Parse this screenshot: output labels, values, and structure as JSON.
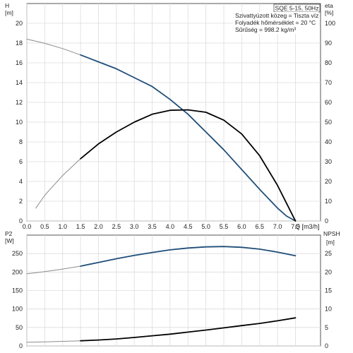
{
  "chart_data": [
    {
      "type": "line",
      "x_label": "Q [m3/h]",
      "x_ticks": [
        "0.0",
        "0.5",
        "1.0",
        "1.5",
        "2.0",
        "2.5",
        "3.0",
        "3.5",
        "4.0",
        "4.5",
        "5.0",
        "5.5",
        "6.0",
        "6.5",
        "7.0",
        "7.5"
      ],
      "xlim": [
        0,
        8.2
      ],
      "left_axis": {
        "unit": "H",
        "unit2": "[m]",
        "ticks": [
          "0",
          "2",
          "4",
          "6",
          "8",
          "10",
          "12",
          "14",
          "16",
          "18",
          "20"
        ],
        "ylim": [
          0,
          22
        ]
      },
      "right_axis": {
        "unit": "eta",
        "unit2": "[%]",
        "ticks": [
          "0",
          "10",
          "20",
          "30",
          "40",
          "50",
          "60",
          "70",
          "80",
          "90",
          "100"
        ],
        "ylim": [
          0,
          110
        ]
      },
      "info_box": "SQE 5-15, 50Hz",
      "notes": [
        "Szivattyúzott közeg = Tiszta víz",
        "Folyadék hőmérséklet = 20 °C",
        "Sűrűség = 998.2 kg/m³"
      ],
      "series": [
        {
          "axis": "left",
          "color": "#8c8c8c",
          "width": 1,
          "x": [
            0.0,
            0.5,
            1.0,
            1.5
          ],
          "y": [
            18.4,
            17.97,
            17.44,
            16.8
          ]
        },
        {
          "axis": "left",
          "color": "#1f4e79",
          "width": 1.8,
          "x": [
            1.5,
            2.0,
            2.5,
            3.0,
            3.5,
            4.0,
            4.5,
            5.0,
            5.5,
            6.0,
            6.5,
            7.0,
            7.25,
            7.5
          ],
          "y": [
            16.8,
            16.1,
            15.4,
            14.5,
            13.6,
            12.3,
            10.8,
            9.0,
            7.2,
            5.2,
            3.2,
            1.3,
            0.5,
            0.0
          ]
        },
        {
          "axis": "right",
          "color": "#8c8c8c",
          "width": 1,
          "x": [
            0.25,
            0.5,
            1.0,
            1.5
          ],
          "y": [
            6.5,
            13.0,
            23.0,
            31.5
          ]
        },
        {
          "axis": "right",
          "color": "#000000",
          "width": 1.8,
          "x": [
            1.5,
            2.0,
            2.5,
            3.0,
            3.5,
            4.0,
            4.5,
            5.0,
            5.5,
            6.0,
            6.5,
            7.0,
            7.25,
            7.5
          ],
          "y": [
            31.5,
            39.0,
            45.0,
            50.0,
            54.0,
            56.0,
            56.2,
            55.0,
            51.0,
            44.0,
            33.0,
            18.0,
            9.0,
            0.0
          ]
        }
      ]
    },
    {
      "type": "line",
      "xlim": [
        0,
        8.2
      ],
      "left_axis": {
        "unit": "P2",
        "unit2": "[W]",
        "ticks": [
          "0",
          "50",
          "100",
          "150",
          "200",
          "250"
        ],
        "ylim": [
          0,
          300
        ]
      },
      "right_axis": {
        "unit": "NPSH",
        "unit2": "[m]",
        "ticks": [
          "0",
          "5",
          "10",
          "15",
          "20",
          "25"
        ],
        "ylim": [
          0,
          30
        ]
      },
      "series": [
        {
          "axis": "left",
          "color": "#8c8c8c",
          "width": 1,
          "x": [
            0.0,
            0.5,
            1.0,
            1.5
          ],
          "y": [
            195.0,
            201.0,
            208.0,
            216.0
          ]
        },
        {
          "axis": "left",
          "color": "#1f4e79",
          "width": 1.8,
          "x": [
            1.5,
            2.0,
            2.5,
            3.0,
            3.5,
            4.0,
            4.5,
            5.0,
            5.5,
            6.0,
            6.5,
            7.0,
            7.5
          ],
          "y": [
            216.0,
            226.0,
            236.0,
            245.0,
            253.0,
            260.0,
            265.0,
            268.0,
            269.0,
            267.0,
            262.0,
            254.0,
            244.0
          ]
        },
        {
          "axis": "right",
          "color": "#8c8c8c",
          "width": 1,
          "x": [
            0.0,
            0.5,
            1.0,
            1.5
          ],
          "y": [
            1.0,
            1.1,
            1.25,
            1.4
          ]
        },
        {
          "axis": "right",
          "color": "#000000",
          "width": 1.8,
          "x": [
            1.5,
            2.0,
            2.5,
            3.0,
            3.5,
            4.0,
            4.5,
            5.0,
            5.5,
            6.0,
            6.5,
            7.0,
            7.5
          ],
          "y": [
            1.4,
            1.6,
            1.9,
            2.3,
            2.75,
            3.2,
            3.75,
            4.3,
            4.9,
            5.5,
            6.1,
            6.8,
            7.6
          ]
        }
      ]
    }
  ]
}
